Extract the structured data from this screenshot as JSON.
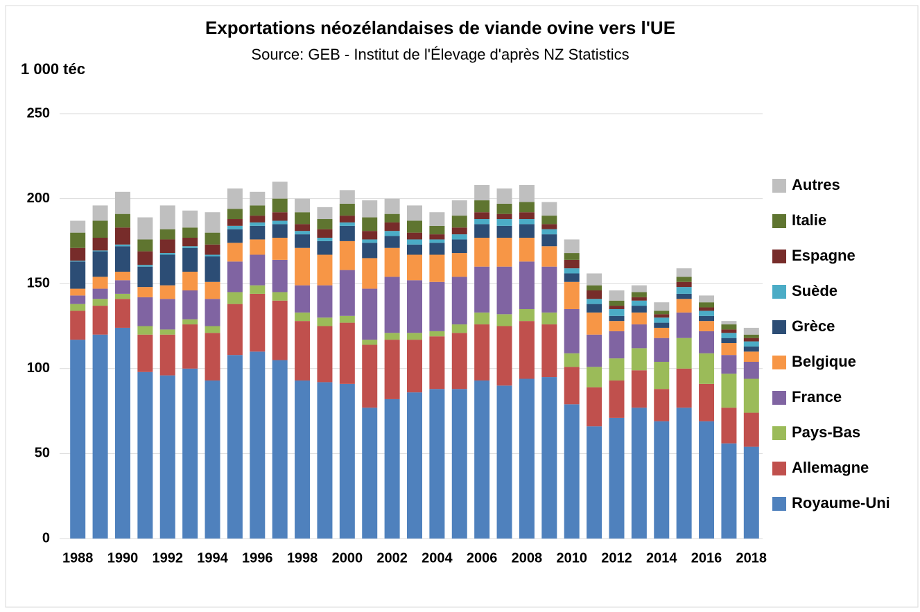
{
  "chart_data": {
    "type": "stacked_bar",
    "title": "Exportations néozélandaises de viande ovine vers l'UE",
    "subtitle": "Source: GEB - Institut de l'Élevage d'après NZ Statistics",
    "y_label": "1 000 téc",
    "categories": [
      "1988",
      null,
      "1990",
      null,
      "1992",
      null,
      "1994",
      null,
      "1996",
      null,
      "1998",
      null,
      "2000",
      null,
      "2002",
      null,
      "2004",
      null,
      "2006",
      null,
      "2008",
      null,
      "2010",
      null,
      "2012",
      null,
      "2014",
      null,
      "2016",
      null,
      "2018"
    ],
    "ylim": [
      0,
      250
    ],
    "yticks": [
      0,
      50,
      100,
      150,
      200,
      250
    ],
    "grid": true,
    "legend": "right",
    "series": [
      {
        "name": "Royaume-Uni",
        "color": "#4f81bd",
        "values": [
          117,
          120,
          124,
          98,
          96,
          100,
          93,
          108,
          110,
          105,
          93,
          92,
          91,
          77,
          82,
          86,
          88,
          88,
          93,
          90,
          94,
          95,
          79,
          66,
          71,
          77,
          69,
          77,
          69,
          56,
          54
        ]
      },
      {
        "name": "Allemagne",
        "color": "#c0504d",
        "values": [
          17,
          17,
          17,
          22,
          24,
          26,
          28,
          30,
          34,
          35,
          35,
          33,
          36,
          37,
          35,
          31,
          31,
          33,
          33,
          35,
          34,
          31,
          22,
          23,
          22,
          22,
          19,
          23,
          22,
          21,
          20
        ]
      },
      {
        "name": "Pays-Bas",
        "color": "#9bbb59",
        "values": [
          4,
          4,
          3,
          5,
          3,
          3,
          4,
          7,
          5,
          5,
          5,
          5,
          4,
          3,
          4,
          4,
          3,
          5,
          7,
          7,
          7,
          7,
          8,
          12,
          13,
          13,
          16,
          18,
          18,
          20,
          20
        ]
      },
      {
        "name": "France",
        "color": "#8064a2",
        "values": [
          5,
          6,
          8,
          17,
          18,
          17,
          16,
          18,
          18,
          19,
          16,
          19,
          27,
          30,
          33,
          31,
          29,
          28,
          27,
          28,
          28,
          27,
          26,
          19,
          16,
          14,
          14,
          15,
          13,
          11,
          10
        ]
      },
      {
        "name": "Belgique",
        "color": "#f79646",
        "values": [
          4,
          7,
          5,
          6,
          8,
          11,
          10,
          11,
          9,
          13,
          22,
          18,
          17,
          18,
          17,
          15,
          16,
          14,
          17,
          17,
          14,
          12,
          16,
          13,
          6,
          7,
          6,
          8,
          6,
          7,
          6
        ]
      },
      {
        "name": "Grèce",
        "color": "#2c4d75",
        "values": [
          16,
          15,
          15,
          12,
          18,
          14,
          15,
          8,
          8,
          8,
          8,
          8,
          9,
          9,
          7,
          6,
          7,
          8,
          8,
          7,
          8,
          7,
          5,
          5,
          3,
          4,
          3,
          3,
          3,
          3,
          3
        ]
      },
      {
        "name": "Suède",
        "color": "#4bacc6",
        "values": [
          0.5,
          0.5,
          1,
          1,
          1,
          1,
          1,
          2,
          2,
          2,
          2,
          2,
          2,
          2,
          3,
          3,
          2,
          3,
          3,
          4,
          3,
          3,
          3,
          3,
          4,
          3,
          3,
          4,
          3,
          3,
          3
        ]
      },
      {
        "name": "Espagne",
        "color": "#772c2a",
        "values": [
          7.5,
          7.5,
          10,
          8,
          8,
          5,
          6,
          4,
          4,
          5,
          4,
          5,
          4,
          5,
          5,
          4,
          3,
          4,
          4,
          3,
          4,
          3,
          5,
          5,
          2,
          2,
          2,
          3,
          2,
          2,
          2
        ]
      },
      {
        "name": "Italie",
        "color": "#5f7530",
        "values": [
          9,
          10,
          8,
          7,
          6,
          6,
          7,
          6,
          6,
          8,
          7,
          6,
          7,
          8,
          5,
          7,
          5,
          7,
          7,
          6,
          6,
          5,
          4,
          3,
          3,
          3,
          2,
          3,
          3,
          3,
          2
        ]
      },
      {
        "name": "Autres",
        "color": "#bfbfbf",
        "values": [
          7,
          9,
          13,
          13,
          14,
          10,
          12,
          12,
          8,
          10,
          8,
          7,
          8,
          10,
          9,
          9,
          8,
          9,
          9,
          9,
          10,
          8,
          8,
          7,
          6,
          4,
          5,
          5,
          4,
          2,
          4
        ]
      }
    ]
  }
}
